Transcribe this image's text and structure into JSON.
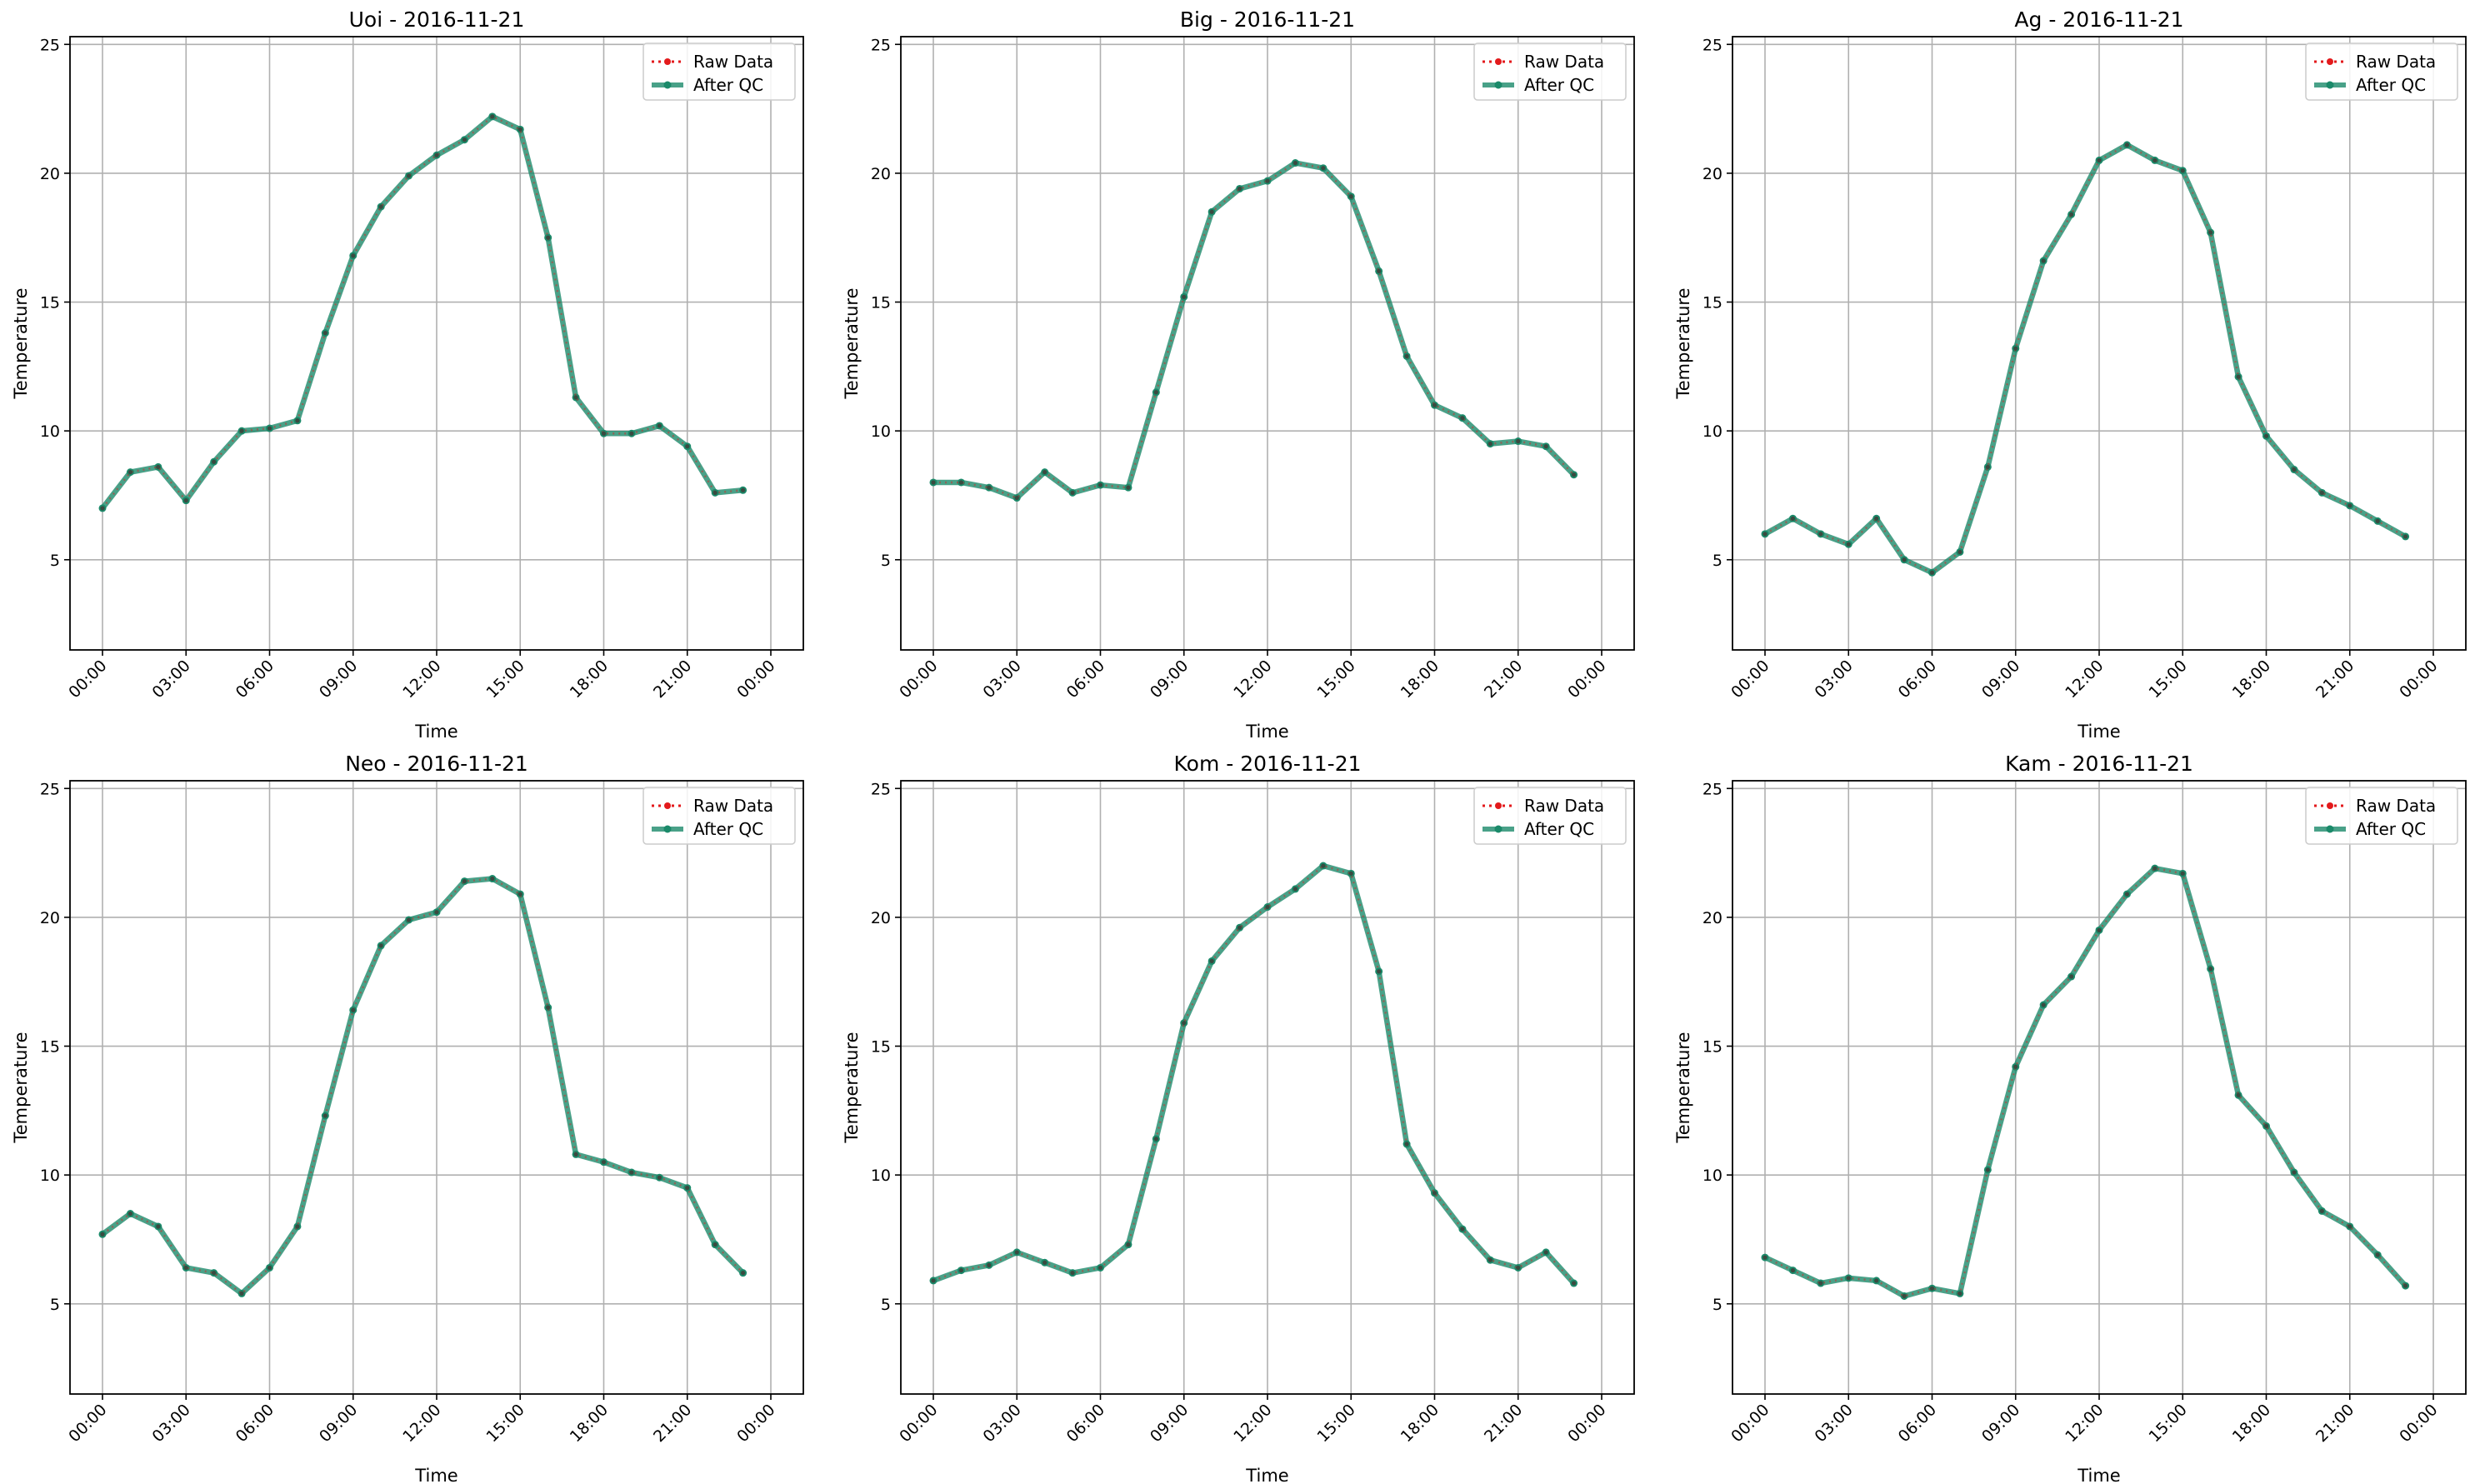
{
  "colors": {
    "raw": "#e31a1c",
    "qc": "#1b8a6a",
    "grid": "#b0b0b0",
    "axes": "#000000"
  },
  "chart_data": [
    {
      "type": "line",
      "title": "Uoi - 2016-11-21",
      "xlabel": "Time",
      "ylabel": "Temperature",
      "x": [
        "00:00",
        "01:00",
        "02:00",
        "03:00",
        "04:00",
        "05:00",
        "06:00",
        "07:00",
        "08:00",
        "09:00",
        "10:00",
        "11:00",
        "12:00",
        "13:00",
        "14:00",
        "15:00",
        "16:00",
        "17:00",
        "18:00",
        "19:00",
        "20:00",
        "21:00",
        "22:00",
        "23:00"
      ],
      "xticks": [
        "00:00",
        "03:00",
        "06:00",
        "09:00",
        "12:00",
        "15:00",
        "18:00",
        "21:00",
        "00:00"
      ],
      "yticks": [
        5,
        10,
        15,
        20,
        25
      ],
      "ylim": [
        1.5,
        25.3
      ],
      "grid": true,
      "legend_position": "top-right",
      "series": [
        {
          "name": "Raw Data",
          "values": [
            7.0,
            8.4,
            8.6,
            7.3,
            8.8,
            10.0,
            10.1,
            10.4,
            13.8,
            16.8,
            18.7,
            19.9,
            20.7,
            21.3,
            22.2,
            21.7,
            17.5,
            11.3,
            9.9,
            9.9,
            10.2,
            9.4,
            7.6,
            7.7
          ]
        },
        {
          "name": "After QC",
          "values": [
            7.0,
            8.4,
            8.6,
            7.3,
            8.8,
            10.0,
            10.1,
            10.4,
            13.8,
            16.8,
            18.7,
            19.9,
            20.7,
            21.3,
            22.2,
            21.7,
            17.5,
            11.3,
            9.9,
            9.9,
            10.2,
            9.4,
            7.6,
            7.7
          ]
        }
      ]
    },
    {
      "type": "line",
      "title": "Big - 2016-11-21",
      "xlabel": "Time",
      "ylabel": "Temperature",
      "x": [
        "00:00",
        "01:00",
        "02:00",
        "03:00",
        "04:00",
        "05:00",
        "06:00",
        "07:00",
        "08:00",
        "09:00",
        "10:00",
        "11:00",
        "12:00",
        "13:00",
        "14:00",
        "15:00",
        "16:00",
        "17:00",
        "18:00",
        "19:00",
        "20:00",
        "21:00",
        "22:00",
        "23:00"
      ],
      "xticks": [
        "00:00",
        "03:00",
        "06:00",
        "09:00",
        "12:00",
        "15:00",
        "18:00",
        "21:00",
        "00:00"
      ],
      "yticks": [
        5,
        10,
        15,
        20,
        25
      ],
      "ylim": [
        1.5,
        25.3
      ],
      "grid": true,
      "legend_position": "top-right",
      "series": [
        {
          "name": "Raw Data",
          "values": [
            8.0,
            8.0,
            7.8,
            7.4,
            8.4,
            7.6,
            7.9,
            7.8,
            11.5,
            15.2,
            18.5,
            19.4,
            19.7,
            20.4,
            20.2,
            19.1,
            16.2,
            12.9,
            11.0,
            10.5,
            9.5,
            9.6,
            9.4,
            8.3
          ]
        },
        {
          "name": "After QC",
          "values": [
            8.0,
            8.0,
            7.8,
            7.4,
            8.4,
            7.6,
            7.9,
            7.8,
            11.5,
            15.2,
            18.5,
            19.4,
            19.7,
            20.4,
            20.2,
            19.1,
            16.2,
            12.9,
            11.0,
            10.5,
            9.5,
            9.6,
            9.4,
            8.3
          ]
        }
      ]
    },
    {
      "type": "line",
      "title": "Ag - 2016-11-21",
      "xlabel": "Time",
      "ylabel": "Temperature",
      "x": [
        "00:00",
        "01:00",
        "02:00",
        "03:00",
        "04:00",
        "05:00",
        "06:00",
        "07:00",
        "08:00",
        "09:00",
        "10:00",
        "11:00",
        "12:00",
        "13:00",
        "14:00",
        "15:00",
        "16:00",
        "17:00",
        "18:00",
        "19:00",
        "20:00",
        "21:00",
        "22:00",
        "23:00"
      ],
      "xticks": [
        "00:00",
        "03:00",
        "06:00",
        "09:00",
        "12:00",
        "15:00",
        "18:00",
        "21:00",
        "00:00"
      ],
      "yticks": [
        5,
        10,
        15,
        20,
        25
      ],
      "ylim": [
        1.5,
        25.3
      ],
      "grid": true,
      "legend_position": "top-right",
      "series": [
        {
          "name": "Raw Data",
          "values": [
            6.0,
            6.6,
            6.0,
            5.6,
            6.6,
            5.0,
            4.5,
            5.3,
            8.6,
            13.2,
            16.6,
            18.4,
            20.5,
            21.1,
            20.5,
            20.1,
            17.7,
            12.1,
            9.8,
            8.5,
            7.6,
            7.1,
            6.5,
            5.9
          ]
        },
        {
          "name": "After QC",
          "values": [
            6.0,
            6.6,
            6.0,
            5.6,
            6.6,
            5.0,
            4.5,
            5.3,
            8.6,
            13.2,
            16.6,
            18.4,
            20.5,
            21.1,
            20.5,
            20.1,
            17.7,
            12.1,
            9.8,
            8.5,
            7.6,
            7.1,
            6.5,
            5.9
          ]
        }
      ]
    },
    {
      "type": "line",
      "title": "Neo - 2016-11-21",
      "xlabel": "Time",
      "ylabel": "Temperature",
      "x": [
        "00:00",
        "01:00",
        "02:00",
        "03:00",
        "04:00",
        "05:00",
        "06:00",
        "07:00",
        "08:00",
        "09:00",
        "10:00",
        "11:00",
        "12:00",
        "13:00",
        "14:00",
        "15:00",
        "16:00",
        "17:00",
        "18:00",
        "19:00",
        "20:00",
        "21:00",
        "22:00",
        "23:00"
      ],
      "xticks": [
        "00:00",
        "03:00",
        "06:00",
        "09:00",
        "12:00",
        "15:00",
        "18:00",
        "21:00",
        "00:00"
      ],
      "yticks": [
        5,
        10,
        15,
        20,
        25
      ],
      "ylim": [
        1.5,
        25.3
      ],
      "grid": true,
      "legend_position": "top-right",
      "series": [
        {
          "name": "Raw Data",
          "values": [
            7.7,
            8.5,
            8.0,
            6.4,
            6.2,
            5.4,
            6.4,
            8.0,
            12.3,
            16.4,
            18.9,
            19.9,
            20.2,
            21.4,
            21.5,
            20.9,
            16.5,
            10.8,
            10.5,
            10.1,
            9.9,
            9.5,
            7.3,
            6.2
          ]
        },
        {
          "name": "After QC",
          "values": [
            7.7,
            8.5,
            8.0,
            6.4,
            6.2,
            5.4,
            6.4,
            8.0,
            12.3,
            16.4,
            18.9,
            19.9,
            20.2,
            21.4,
            21.5,
            20.9,
            16.5,
            10.8,
            10.5,
            10.1,
            9.9,
            9.5,
            7.3,
            6.2
          ]
        }
      ]
    },
    {
      "type": "line",
      "title": "Kom - 2016-11-21",
      "xlabel": "Time",
      "ylabel": "Temperature",
      "x": [
        "00:00",
        "01:00",
        "02:00",
        "03:00",
        "04:00",
        "05:00",
        "06:00",
        "07:00",
        "08:00",
        "09:00",
        "10:00",
        "11:00",
        "12:00",
        "13:00",
        "14:00",
        "15:00",
        "16:00",
        "17:00",
        "18:00",
        "19:00",
        "20:00",
        "21:00",
        "22:00",
        "23:00"
      ],
      "xticks": [
        "00:00",
        "03:00",
        "06:00",
        "09:00",
        "12:00",
        "15:00",
        "18:00",
        "21:00",
        "00:00"
      ],
      "yticks": [
        5,
        10,
        15,
        20,
        25
      ],
      "ylim": [
        1.5,
        25.3
      ],
      "grid": true,
      "legend_position": "top-right",
      "series": [
        {
          "name": "Raw Data",
          "values": [
            5.9,
            6.3,
            6.5,
            7.0,
            6.6,
            6.2,
            6.4,
            7.3,
            11.4,
            15.9,
            18.3,
            19.6,
            20.4,
            21.1,
            22.0,
            21.7,
            17.9,
            11.2,
            9.3,
            7.9,
            6.7,
            6.4,
            7.0,
            5.8
          ]
        },
        {
          "name": "After QC",
          "values": [
            5.9,
            6.3,
            6.5,
            7.0,
            6.6,
            6.2,
            6.4,
            7.3,
            11.4,
            15.9,
            18.3,
            19.6,
            20.4,
            21.1,
            22.0,
            21.7,
            17.9,
            11.2,
            9.3,
            7.9,
            6.7,
            6.4,
            7.0,
            5.8
          ]
        }
      ]
    },
    {
      "type": "line",
      "title": "Kam - 2016-11-21",
      "xlabel": "Time",
      "ylabel": "Temperature",
      "x": [
        "00:00",
        "01:00",
        "02:00",
        "03:00",
        "04:00",
        "05:00",
        "06:00",
        "07:00",
        "08:00",
        "09:00",
        "10:00",
        "11:00",
        "12:00",
        "13:00",
        "14:00",
        "15:00",
        "16:00",
        "17:00",
        "18:00",
        "19:00",
        "20:00",
        "21:00",
        "22:00",
        "23:00"
      ],
      "xticks": [
        "00:00",
        "03:00",
        "06:00",
        "09:00",
        "12:00",
        "15:00",
        "18:00",
        "21:00",
        "00:00"
      ],
      "yticks": [
        5,
        10,
        15,
        20,
        25
      ],
      "ylim": [
        1.5,
        25.3
      ],
      "grid": true,
      "legend_position": "top-right",
      "series": [
        {
          "name": "Raw Data",
          "values": [
            6.8,
            6.3,
            5.8,
            6.0,
            5.9,
            5.3,
            5.6,
            5.4,
            10.2,
            14.2,
            16.6,
            17.7,
            19.5,
            20.9,
            21.9,
            21.7,
            18.0,
            13.1,
            11.9,
            10.1,
            8.6,
            8.0,
            6.9,
            5.7
          ]
        },
        {
          "name": "After QC",
          "values": [
            6.8,
            6.3,
            5.8,
            6.0,
            5.9,
            5.3,
            5.6,
            5.4,
            10.2,
            14.2,
            16.6,
            17.7,
            19.5,
            20.9,
            21.9,
            21.7,
            18.0,
            13.1,
            11.9,
            10.1,
            8.6,
            8.0,
            6.9,
            5.7
          ]
        }
      ]
    }
  ]
}
